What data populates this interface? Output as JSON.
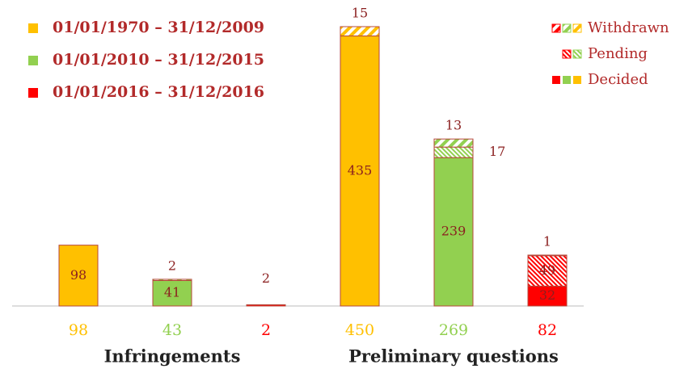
{
  "chart_data": {
    "type": "stacked_bar",
    "ylim": [
      0,
      450
    ],
    "bar_colors": [
      "#FFC000",
      "#92D050",
      "#FF0000",
      "#FFC000",
      "#92D050",
      "#FF0000"
    ],
    "totals": [
      98,
      43,
      2,
      450,
      269,
      82
    ],
    "groups": [
      "Infringements",
      "Preliminary questions"
    ],
    "series": [
      {
        "name": "Decided",
        "values": [
          98,
          41,
          2,
          435,
          239,
          32
        ]
      },
      {
        "name": "Pending",
        "values": [
          null,
          null,
          null,
          null,
          17,
          49
        ]
      },
      {
        "name": "Withdrawn",
        "values": [
          null,
          2,
          null,
          15,
          13,
          1
        ]
      }
    ],
    "periods": [
      {
        "label": "01/01/1970 – 31/12/2009",
        "color": "#FFC000"
      },
      {
        "label": "01/01/2010 – 31/12/2015",
        "color": "#92D050"
      },
      {
        "label": "01/01/2016 – 31/12/2016",
        "color": "#FF0000"
      }
    ]
  }
}
